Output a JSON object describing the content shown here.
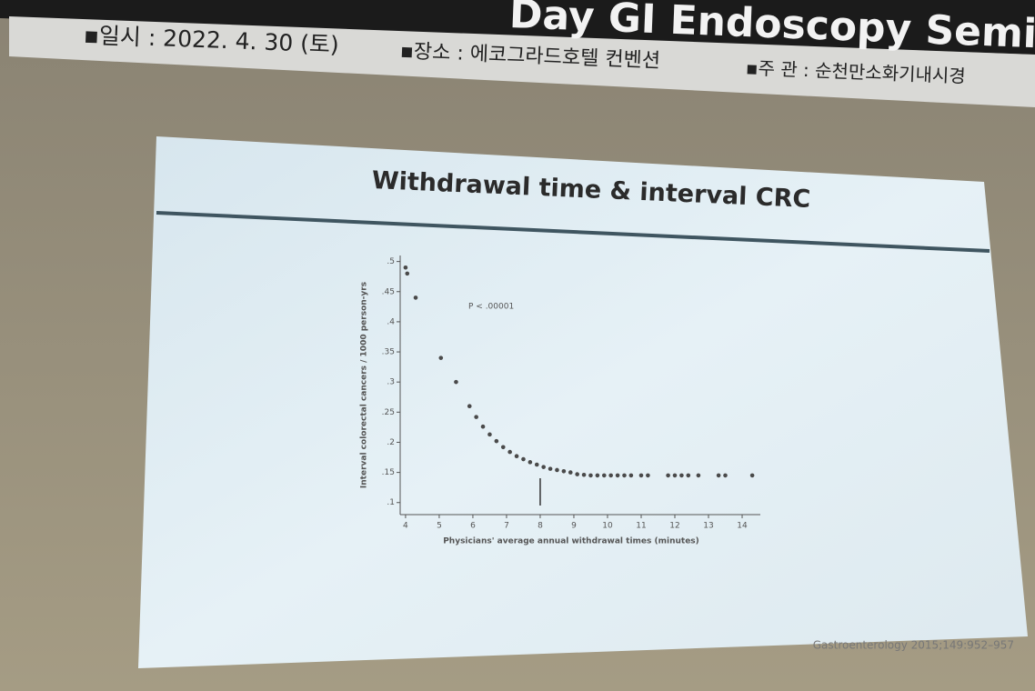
{
  "banner": {
    "title": "Day GI Endoscopy Seminar (Online&",
    "date": "▪일시 : 2022. 4. 30 (토)",
    "venue": "▪장소 : 에코그라드호텔 컨벤션",
    "host": "▪주 관 : 순천만소화기내시경"
  },
  "chart_data": {
    "type": "scatter",
    "title": "Withdrawal time & interval CRC",
    "x_label": "Physicians' average annual withdrawal times (minutes)",
    "y_label": "Interval colorectal cancers / 1000 person-yrs",
    "annotation": "P < .00001",
    "source": "Gastroenterology 2015;149:952–957",
    "color": "#4a4a4a",
    "reference_x": 8,
    "x": [
      4.0,
      4.05,
      4.3,
      5.05,
      5.5,
      5.9,
      6.1,
      6.3,
      6.5,
      6.7,
      6.9,
      7.1,
      7.3,
      7.5,
      7.7,
      7.9,
      8.1,
      8.3,
      8.5,
      8.7,
      8.9,
      9.1,
      9.3,
      9.5,
      9.7,
      9.9,
      10.1,
      10.3,
      10.5,
      10.7,
      11.0,
      11.2,
      11.8,
      12.0,
      12.2,
      12.4,
      12.7,
      13.3,
      13.5,
      14.3
    ],
    "values": [
      0.49,
      0.48,
      0.44,
      0.34,
      0.3,
      0.26,
      0.242,
      0.226,
      0.213,
      0.202,
      0.192,
      0.184,
      0.177,
      0.172,
      0.167,
      0.163,
      0.159,
      0.156,
      0.154,
      0.152,
      0.15,
      0.147,
      0.146,
      0.145,
      0.145,
      0.145,
      0.145,
      0.145,
      0.145,
      0.145,
      0.145,
      0.145,
      0.145,
      0.145,
      0.145,
      0.145,
      0.145,
      0.145,
      0.145,
      0.145
    ],
    "xlim": [
      3.84,
      14.54
    ],
    "ylim": [
      0.08,
      0.51
    ],
    "xticks": [
      4,
      5,
      6,
      7,
      8,
      9,
      10,
      11,
      12,
      13,
      14
    ],
    "yticks": [
      {
        "value": 0.1,
        "label": ".1"
      },
      {
        "value": 0.15,
        "label": ".15"
      },
      {
        "value": 0.2,
        "label": ".2"
      },
      {
        "value": 0.25,
        "label": ".25"
      },
      {
        "value": 0.3,
        "label": ".3"
      },
      {
        "value": 0.35,
        "label": ".35"
      },
      {
        "value": 0.4,
        "label": ".4"
      },
      {
        "value": 0.45,
        "label": ".45"
      },
      {
        "value": 0.5,
        "label": ".5"
      }
    ]
  }
}
